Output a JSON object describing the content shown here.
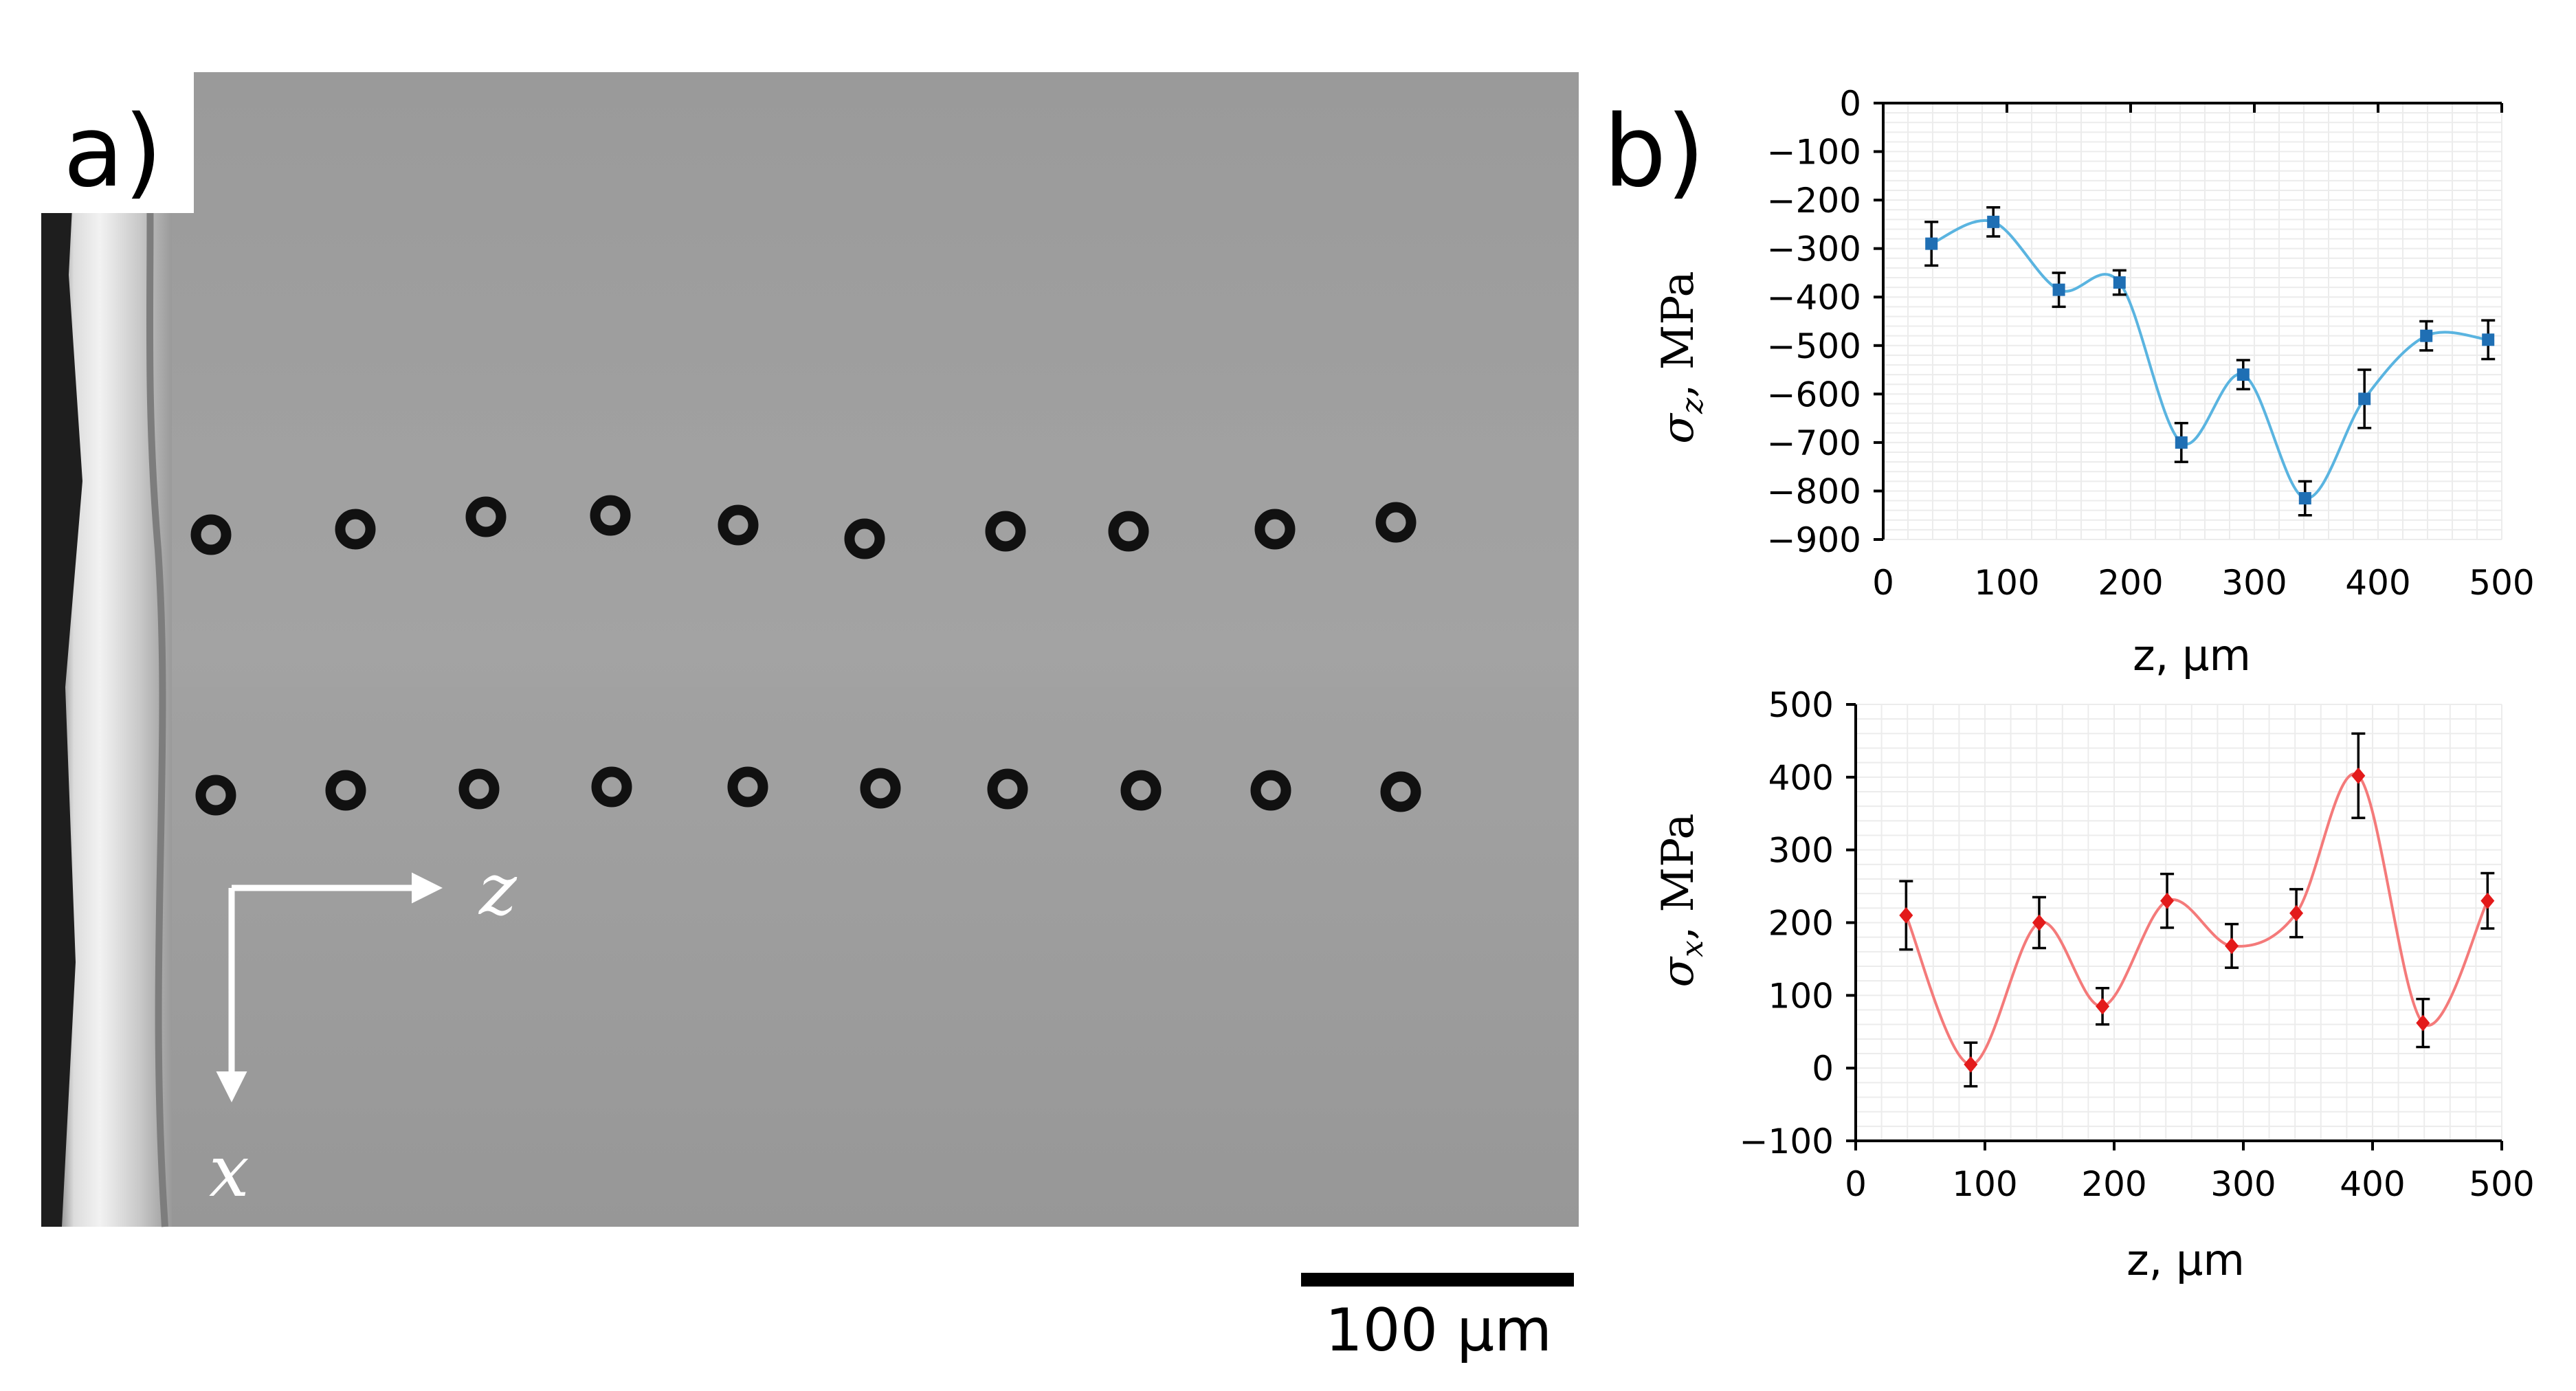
{
  "panel_a": {
    "label": "a)",
    "axis_z_label": "z",
    "axis_x_label": "x",
    "scale_bar_label": "100 μm"
  },
  "panel_b": {
    "label": "b)"
  },
  "chart_data": [
    {
      "type": "line",
      "title": "",
      "xlabel": "z, μm",
      "ylabel_symbol": "σ",
      "ylabel_subscript": "z",
      "ylabel_unit": ", MPa",
      "xlim": [
        0,
        500
      ],
      "ylim": [
        -900,
        0
      ],
      "xticks": [
        0,
        100,
        200,
        300,
        400,
        500
      ],
      "yticks": [
        0,
        -100,
        -200,
        -300,
        -400,
        -500,
        -600,
        -700,
        -800,
        -900
      ],
      "ytick_labels": [
        "0",
        "−100",
        "−200",
        "−300",
        "−400",
        "−500",
        "−600",
        "−700",
        "−800",
        "−900"
      ],
      "color": "#5ab4e0",
      "marker_color": "#1f6fb4",
      "grid": true,
      "smoothed": true,
      "series": [
        {
          "x": [
            39,
            89,
            142,
            191,
            241,
            291,
            341,
            389,
            439,
            489
          ],
          "y": [
            -290,
            -245,
            -385,
            -370,
            -700,
            -560,
            -815,
            -610,
            -480,
            -488
          ],
          "err": [
            45,
            30,
            35,
            25,
            40,
            30,
            35,
            60,
            30,
            40
          ]
        }
      ]
    },
    {
      "type": "line",
      "title": "",
      "xlabel": "z, μm",
      "ylabel_symbol": "σ",
      "ylabel_subscript": "x",
      "ylabel_unit": ", MPa",
      "xlim": [
        0,
        500
      ],
      "ylim": [
        -100,
        500
      ],
      "xticks": [
        0,
        100,
        200,
        300,
        400,
        500
      ],
      "yticks": [
        500,
        400,
        300,
        200,
        100,
        0,
        -100
      ],
      "ytick_labels": [
        "500",
        "400",
        "300",
        "200",
        "100",
        "0",
        "−100"
      ],
      "color": "#f47a7a",
      "marker_color": "#e31a1a",
      "grid": true,
      "smoothed": true,
      "series": [
        {
          "x": [
            39,
            89,
            142,
            191,
            241,
            291,
            341,
            389,
            439,
            489
          ],
          "y": [
            210,
            5,
            200,
            85,
            230,
            168,
            213,
            402,
            62,
            230
          ],
          "err": [
            47,
            30,
            35,
            25,
            37,
            30,
            33,
            58,
            33,
            38
          ]
        }
      ]
    }
  ]
}
